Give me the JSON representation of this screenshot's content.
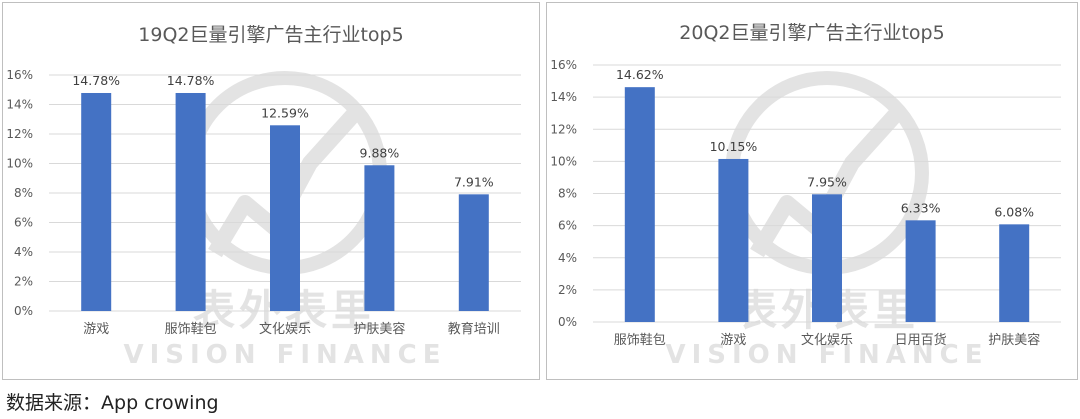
{
  "source": {
    "label": "数据来源：",
    "value": "App crowing"
  },
  "watermark": {
    "cn": "表外表里",
    "en": "VISION FINANCE",
    "color": "#e3e3e3"
  },
  "colors": {
    "bar": "#4472c4",
    "grid": "#d9d9d9",
    "axis_text": "#595959",
    "title": "#595959"
  },
  "chart_data": [
    {
      "type": "bar",
      "title": "19Q2巨量引擎广告主行业top5",
      "categories": [
        "游戏",
        "服饰鞋包",
        "文化娱乐",
        "护肤美容",
        "教育培训"
      ],
      "values": [
        14.78,
        14.78,
        12.59,
        9.88,
        7.91
      ],
      "value_labels": [
        "14.78%",
        "14.78%",
        "12.59%",
        "9.88%",
        "7.91%"
      ],
      "ylim": [
        0,
        16
      ],
      "yticks": [
        "0%",
        "2%",
        "4%",
        "6%",
        "8%",
        "10%",
        "12%",
        "14%",
        "16%"
      ],
      "grid": true
    },
    {
      "type": "bar",
      "title": "20Q2巨量引擎广告主行业top5",
      "categories": [
        "服饰鞋包",
        "游戏",
        "文化娱乐",
        "日用百货",
        "护肤美容"
      ],
      "values": [
        14.62,
        10.15,
        7.95,
        6.33,
        6.08
      ],
      "value_labels": [
        "14.62%",
        "10.15%",
        "7.95%",
        "6.33%",
        "6.08%"
      ],
      "ylim": [
        0,
        16
      ],
      "yticks": [
        "0%",
        "2%",
        "4%",
        "6%",
        "8%",
        "10%",
        "12%",
        "14%",
        "16%"
      ],
      "grid": true
    }
  ]
}
